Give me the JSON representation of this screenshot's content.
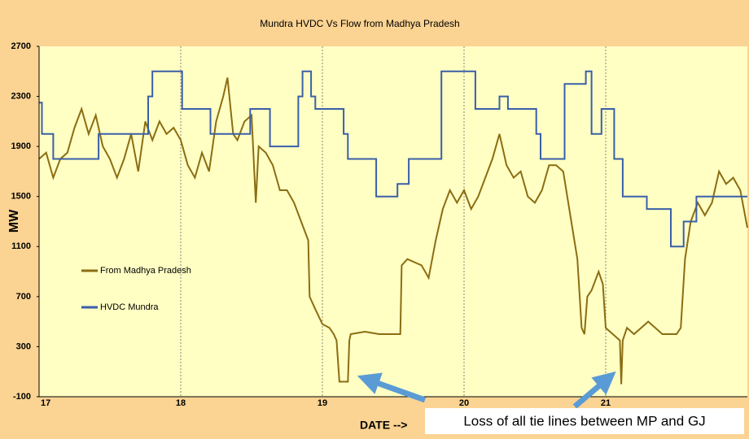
{
  "chart_data": {
    "type": "line",
    "title": "Mundra HVDC Vs Flow from Madhya Pradesh",
    "x_label": "DATE -->",
    "y_label": "MW",
    "annotation": "Loss of all tie lines between MP and GJ",
    "xlim": [
      17,
      22
    ],
    "xticks": [
      17,
      18,
      19,
      20,
      21
    ],
    "ylim": [
      -100,
      2700
    ],
    "yticks": [
      -100,
      300,
      700,
      1100,
      1500,
      1900,
      2300,
      2700
    ],
    "xgrid": true,
    "legend": "left",
    "series": [
      {
        "name": "From Madhya Pradesh",
        "color": "#8b6d12",
        "x": [
          17.0,
          17.05,
          17.1,
          17.15,
          17.2,
          17.25,
          17.3,
          17.35,
          17.4,
          17.45,
          17.5,
          17.55,
          17.6,
          17.65,
          17.7,
          17.75,
          17.8,
          17.85,
          17.9,
          17.95,
          18.0,
          18.05,
          18.1,
          18.15,
          18.2,
          18.25,
          18.3,
          18.33,
          18.37,
          18.4,
          18.45,
          18.5,
          18.53,
          18.55,
          18.6,
          18.65,
          18.7,
          18.75,
          18.8,
          18.85,
          18.9,
          18.91,
          18.95,
          19.0,
          19.05,
          19.08,
          19.1,
          19.12,
          19.18,
          19.19,
          19.2,
          19.3,
          19.4,
          19.5,
          19.55,
          19.56,
          19.6,
          19.7,
          19.75,
          19.8,
          19.85,
          19.9,
          19.95,
          20.0,
          20.05,
          20.1,
          20.15,
          20.2,
          20.25,
          20.3,
          20.35,
          20.4,
          20.45,
          20.5,
          20.55,
          20.6,
          20.65,
          20.7,
          20.75,
          20.8,
          20.83,
          20.85,
          20.87,
          20.9,
          20.95,
          20.98,
          21.0,
          21.05,
          21.1,
          21.11,
          21.12,
          21.15,
          21.2,
          21.3,
          21.35,
          21.4,
          21.45,
          21.5,
          21.53,
          21.56,
          21.6,
          21.65,
          21.7,
          21.75,
          21.8,
          21.85,
          21.9,
          21.95,
          22.0
        ],
        "values": [
          1800,
          1850,
          1650,
          1800,
          1850,
          2050,
          2200,
          2000,
          2150,
          1900,
          1800,
          1650,
          1800,
          2000,
          1700,
          2100,
          1950,
          2100,
          2000,
          2050,
          1950,
          1750,
          1650,
          1850,
          1700,
          2100,
          2300,
          2450,
          2000,
          1950,
          2100,
          2150,
          1450,
          1900,
          1850,
          1750,
          1550,
          1550,
          1450,
          1300,
          1150,
          700,
          600,
          480,
          450,
          400,
          350,
          20,
          20,
          350,
          400,
          420,
          400,
          400,
          400,
          950,
          1000,
          950,
          850,
          1150,
          1400,
          1550,
          1450,
          1550,
          1400,
          1500,
          1650,
          1800,
          2000,
          1750,
          1650,
          1700,
          1500,
          1450,
          1550,
          1750,
          1750,
          1700,
          1350,
          1000,
          450,
          400,
          700,
          750,
          900,
          800,
          450,
          400,
          350,
          0,
          350,
          450,
          400,
          500,
          450,
          400,
          400,
          400,
          450,
          1000,
          1300,
          1450,
          1350,
          1450,
          1700,
          1600,
          1650,
          1550,
          1250
        ]
      },
      {
        "name": "HVDC Mundra",
        "color": "#3a5fa8",
        "x": [
          17.0,
          17.02,
          17.02,
          17.1,
          17.1,
          17.42,
          17.42,
          17.77,
          17.77,
          17.8,
          17.8,
          18.01,
          18.01,
          18.21,
          18.21,
          18.49,
          18.49,
          18.63,
          18.63,
          18.83,
          18.83,
          18.86,
          18.86,
          18.92,
          18.92,
          18.95,
          18.95,
          19.15,
          19.15,
          19.18,
          19.18,
          19.38,
          19.38,
          19.53,
          19.53,
          19.61,
          19.61,
          19.84,
          19.84,
          20.08,
          20.08,
          20.25,
          20.25,
          20.31,
          20.31,
          20.51,
          20.51,
          20.54,
          20.54,
          20.71,
          20.71,
          20.86,
          20.86,
          20.9,
          20.9,
          20.97,
          20.97,
          21.06,
          21.06,
          21.12,
          21.12,
          21.29,
          21.29,
          21.46,
          21.46,
          21.55,
          21.55,
          21.64,
          21.64,
          22.0
        ],
        "values": [
          2250,
          2250,
          2000,
          2000,
          1800,
          1800,
          2000,
          2000,
          2300,
          2300,
          2500,
          2500,
          2200,
          2200,
          2000,
          2000,
          2200,
          2200,
          1900,
          1900,
          2300,
          2300,
          2500,
          2500,
          2300,
          2300,
          2200,
          2200,
          2000,
          2000,
          1800,
          1800,
          1500,
          1500,
          1600,
          1600,
          1800,
          1800,
          2500,
          2500,
          2200,
          2200,
          2300,
          2300,
          2200,
          2200,
          2000,
          2000,
          1800,
          1800,
          2400,
          2400,
          2500,
          2500,
          2000,
          2000,
          2200,
          2200,
          1800,
          1800,
          1500,
          1500,
          1400,
          1400,
          1100,
          1100,
          1300,
          1300,
          1500,
          1500
        ]
      }
    ]
  }
}
